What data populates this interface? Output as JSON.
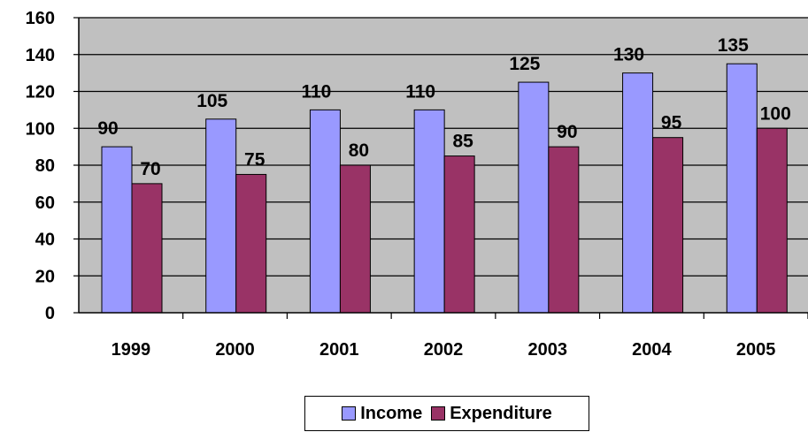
{
  "chart_data": {
    "type": "bar",
    "title": "",
    "xlabel": "",
    "ylabel": "",
    "categories": [
      "1999",
      "2000",
      "2001",
      "2002",
      "2003",
      "2004",
      "2005"
    ],
    "series": [
      {
        "name": "Income",
        "color": "#9999ff",
        "values": [
          90,
          105,
          110,
          110,
          125,
          130,
          135
        ]
      },
      {
        "name": "Expenditure",
        "color": "#993366",
        "values": [
          70,
          75,
          80,
          85,
          90,
          95,
          100
        ]
      }
    ],
    "ylim": [
      0,
      160
    ],
    "yticks": [
      0,
      20,
      40,
      60,
      80,
      100,
      120,
      140,
      160
    ],
    "grid": true,
    "plot_background": "#c0c0c0",
    "legend_position": "bottom",
    "data_labels": true
  }
}
